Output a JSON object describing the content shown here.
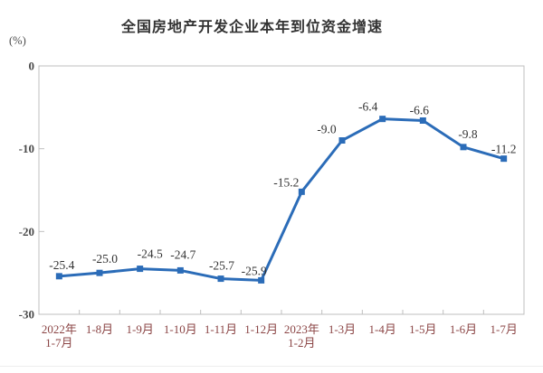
{
  "header": {
    "title": "全国房地产开发企业本年到位资金增速",
    "unit_label": "(%)"
  },
  "chart_data": {
    "type": "line",
    "title": "全国房地产开发企业本年到位资金增速",
    "unit": "(%)",
    "categories": [
      [
        "2022年",
        "1-7月"
      ],
      [
        "1-8月"
      ],
      [
        "1-9月"
      ],
      [
        "1-10月"
      ],
      [
        "1-11月"
      ],
      [
        "1-12月"
      ],
      [
        "2023年",
        "1-2月"
      ],
      [
        "1-3月"
      ],
      [
        "1-4月"
      ],
      [
        "1-5月"
      ],
      [
        "1-6月"
      ],
      [
        "1-7月"
      ]
    ],
    "values": [
      -25.4,
      -25.0,
      -24.5,
      -24.7,
      -25.7,
      -25.9,
      -15.2,
      -9.0,
      -6.4,
      -6.6,
      -9.8,
      -11.2
    ],
    "point_labels": [
      "-25.4",
      "-25.0",
      "-24.5",
      "-24.7",
      "-25.7",
      "-25.9",
      "-15.2",
      "-9.0",
      "-6.4",
      "-6.6",
      "-9.8",
      "-11.2"
    ],
    "ylim": [
      -30,
      0
    ],
    "yticks": [
      0,
      -10,
      -20,
      -30
    ],
    "ytick_labels": [
      "0",
      "-10",
      "-20",
      "-30"
    ],
    "grid": false,
    "legend": "none",
    "marker": "square",
    "colors": {
      "line": "#2B6CB8",
      "marker": "#2B6CB8",
      "axis": "#BFBFBF",
      "point_label": "#333333",
      "ytick_label": "#4a4a4a",
      "xtick_label": "#8B4545"
    },
    "label_dx": [
      3,
      6,
      11,
      3,
      1,
      -8,
      -17,
      -17,
      -16,
      -4,
      5,
      0
    ],
    "label_dy": [
      -8,
      -11,
      -12,
      -13,
      -10,
      -6,
      -6,
      -8,
      -9,
      -7,
      -10,
      -6
    ]
  }
}
